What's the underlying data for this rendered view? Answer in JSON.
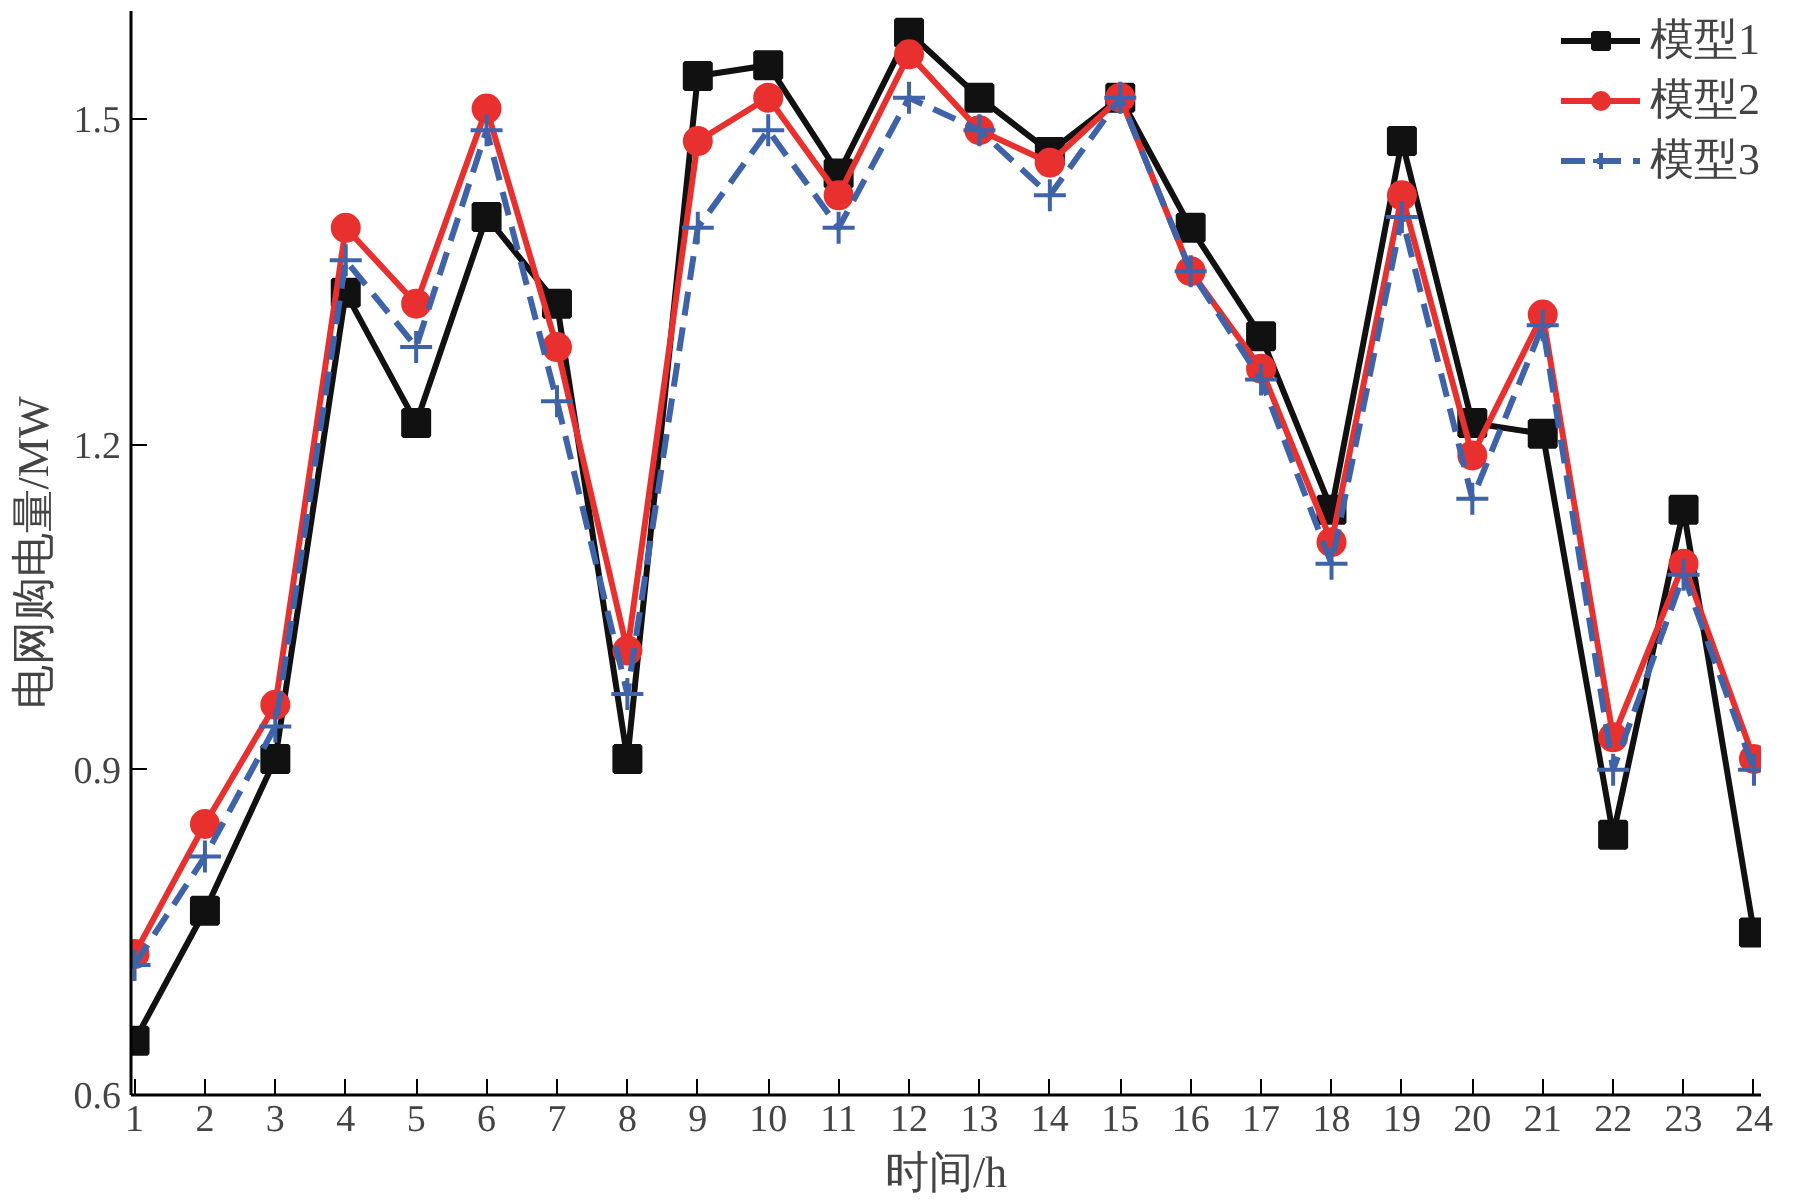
{
  "chart_data": {
    "type": "line",
    "xlabel": "时间/h",
    "ylabel": "电网购电量/MW",
    "x": [
      1,
      2,
      3,
      4,
      5,
      6,
      7,
      8,
      9,
      10,
      11,
      12,
      13,
      14,
      15,
      16,
      17,
      18,
      19,
      20,
      21,
      22,
      23,
      24
    ],
    "xlim": [
      0.95,
      24.1
    ],
    "xticks": [
      1,
      2,
      3,
      4,
      5,
      6,
      7,
      8,
      9,
      10,
      11,
      12,
      13,
      14,
      15,
      16,
      17,
      18,
      19,
      20,
      21,
      22,
      23,
      24
    ],
    "ylim": [
      0.6,
      1.6
    ],
    "yticks": [
      {
        "value": 0.6,
        "label": "0.6"
      },
      {
        "value": 0.9,
        "label": "0.9"
      },
      {
        "value": 1.2,
        "label": "1.2"
      },
      {
        "value": 1.5,
        "label": "1.5"
      }
    ],
    "grid": false,
    "legend": "top right",
    "series": [
      {
        "name": "模型1",
        "color": "#111111",
        "marker": "square",
        "line_style": "solid",
        "values": [
          0.65,
          0.77,
          0.91,
          1.34,
          1.22,
          1.41,
          1.33,
          0.91,
          1.54,
          1.55,
          1.45,
          1.58,
          1.52,
          1.47,
          1.52,
          1.4,
          1.3,
          1.14,
          1.48,
          1.22,
          1.21,
          0.84,
          1.14,
          0.75
        ]
      },
      {
        "name": "模型2",
        "color": "#e8312f",
        "marker": "circle",
        "line_style": "solid",
        "values": [
          0.73,
          0.85,
          0.96,
          1.4,
          1.33,
          1.51,
          1.29,
          1.01,
          1.48,
          1.52,
          1.43,
          1.56,
          1.49,
          1.46,
          1.52,
          1.36,
          1.27,
          1.11,
          1.43,
          1.19,
          1.32,
          0.93,
          1.09,
          0.91
        ]
      },
      {
        "name": "模型3",
        "color": "#3f63a8",
        "marker": "cross",
        "line_style": "dashed",
        "values": [
          0.72,
          0.82,
          0.94,
          1.37,
          1.29,
          1.49,
          1.24,
          0.97,
          1.4,
          1.49,
          1.4,
          1.52,
          1.49,
          1.43,
          1.52,
          1.36,
          1.26,
          1.09,
          1.41,
          1.15,
          1.31,
          0.9,
          1.08,
          0.9
        ]
      }
    ]
  }
}
